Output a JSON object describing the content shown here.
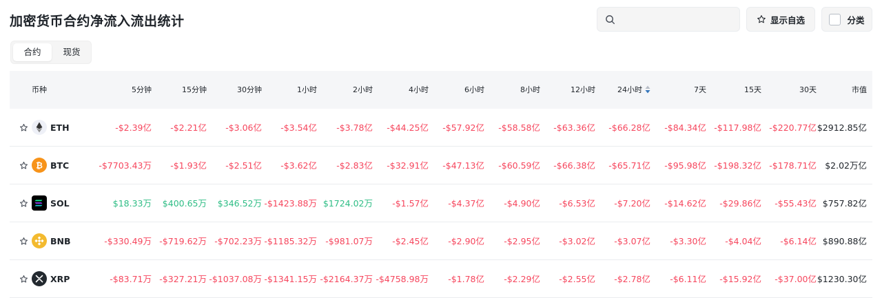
{
  "page": {
    "title": "加密货币合约净流入流出统计"
  },
  "search": {
    "placeholder": "",
    "value": "",
    "icon": "search-icon"
  },
  "toolbar": {
    "favorites_label": "显示自选",
    "category_label": "分类"
  },
  "tabs": [
    {
      "label": "合约",
      "active": true
    },
    {
      "label": "现货",
      "active": false
    }
  ],
  "table": {
    "headers": [
      "币种",
      "5分钟",
      "15分钟",
      "30分钟",
      "1小时",
      "2小时",
      "4小时",
      "6小时",
      "8小时",
      "12小时",
      "24小时",
      "7天",
      "15天",
      "30天",
      "市值"
    ],
    "sorted_column": "24小时",
    "rows": [
      {
        "coin": "ETH",
        "logo_color": "#627eea",
        "cells": [
          "-$2.39亿",
          "-$2.21亿",
          "-$3.06亿",
          "-$3.54亿",
          "-$3.78亿",
          "-$44.25亿",
          "-$57.92亿",
          "-$58.58亿",
          "-$63.36亿",
          "-$66.28亿",
          "-$84.34亿",
          "-$117.98亿",
          "-$220.77亿"
        ],
        "market_cap": "$2912.85亿"
      },
      {
        "coin": "BTC",
        "logo_color": "#f7931a",
        "cells": [
          "-$7703.43万",
          "-$1.93亿",
          "-$2.51亿",
          "-$3.62亿",
          "-$2.83亿",
          "-$32.91亿",
          "-$47.13亿",
          "-$60.59亿",
          "-$66.38亿",
          "-$65.71亿",
          "-$95.98亿",
          "-$198.32亿",
          "-$178.71亿"
        ],
        "market_cap": "$2.02万亿"
      },
      {
        "coin": "SOL",
        "logo_color": "#000000",
        "cells": [
          "$18.33万",
          "$400.65万",
          "$346.52万",
          "-$1423.88万",
          "$1724.02万",
          "-$1.57亿",
          "-$4.37亿",
          "-$4.90亿",
          "-$6.53亿",
          "-$7.20亿",
          "-$14.62亿",
          "-$29.86亿",
          "-$55.43亿"
        ],
        "market_cap": "$757.82亿"
      },
      {
        "coin": "BNB",
        "logo_color": "#f3ba2f",
        "cells": [
          "-$330.49万",
          "-$719.62万",
          "-$702.23万",
          "-$1185.32万",
          "-$981.07万",
          "-$2.45亿",
          "-$2.90亿",
          "-$2.95亿",
          "-$3.02亿",
          "-$3.07亿",
          "-$3.30亿",
          "-$4.04亿",
          "-$6.14亿"
        ],
        "market_cap": "$890.88亿"
      },
      {
        "coin": "XRP",
        "logo_color": "#23292f",
        "cells": [
          "-$83.71万",
          "-$327.21万",
          "-$1037.08万",
          "-$1341.15万",
          "-$2164.37万",
          "-$4758.98万",
          "-$1.78亿",
          "-$2.29亿",
          "-$2.55亿",
          "-$2.78亿",
          "-$6.11亿",
          "-$15.92亿",
          "-$37.00亿"
        ],
        "market_cap": "$1230.30亿"
      }
    ]
  },
  "colors": {
    "negative": "#f6465d",
    "positive": "#2ebd85",
    "header_bg": "#f5f6f8",
    "sort_active": "#3375bb"
  }
}
